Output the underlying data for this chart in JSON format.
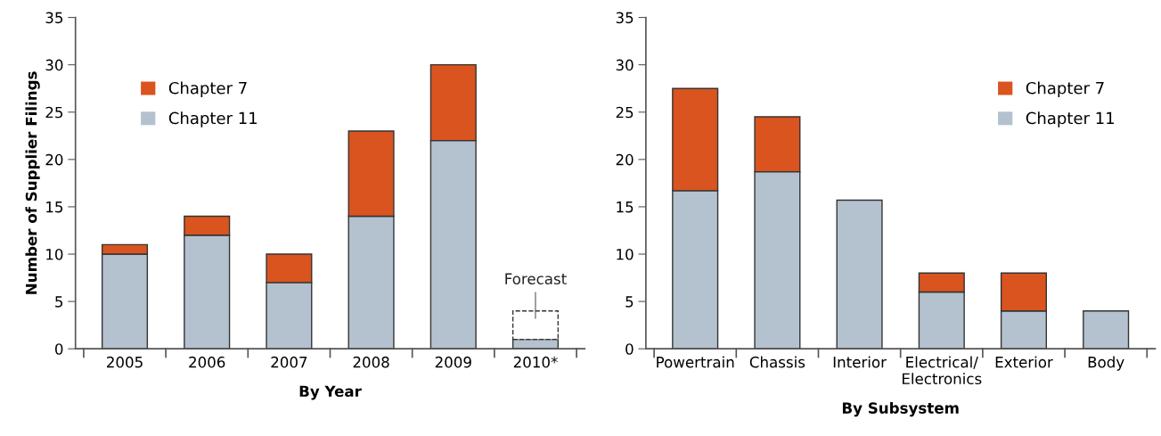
{
  "chart_data": [
    {
      "type": "bar",
      "stacked": true,
      "categories": [
        "2005",
        "2006",
        "2007",
        "2008",
        "2009",
        "2010*"
      ],
      "ylabel": "Number of Supplier Filings",
      "xlabel": "By Year",
      "ylim": [
        0,
        35
      ],
      "yticks": [
        0,
        5,
        10,
        15,
        20,
        25,
        30,
        35
      ],
      "grid": false,
      "legend": "top left",
      "series": [
        {
          "name": "Chapter 11",
          "color": "#b4c2cf",
          "values": [
            10,
            12,
            7,
            14,
            22,
            1
          ]
        },
        {
          "name": "Chapter 7",
          "color": "#d9541e",
          "values": [
            1,
            2,
            3,
            9,
            8,
            null
          ]
        },
        {
          "name": "Forecast",
          "color": "#ffffff",
          "line_style": "dashed",
          "values": [
            null,
            null,
            null,
            null,
            null,
            3
          ]
        }
      ]
    },
    {
      "type": "bar",
      "stacked": true,
      "categories": [
        "Powertrain",
        "Chassis",
        "Interior",
        "Electrical/\nElectronics",
        "Exterior",
        "Body"
      ],
      "xlabel": "By Subsystem",
      "ylim": [
        0,
        35
      ],
      "yticks": [
        0,
        5,
        10,
        15,
        20,
        25,
        30,
        35
      ],
      "grid": false,
      "legend": "top right",
      "series": [
        {
          "name": "Chapter 11",
          "color": "#b4c2cf",
          "values": [
            16.7,
            18.7,
            15.7,
            6,
            4,
            4
          ]
        },
        {
          "name": "Chapter 7",
          "color": "#d9541e",
          "values": [
            10.8,
            5.8,
            null,
            2,
            4,
            null
          ]
        }
      ]
    }
  ]
}
